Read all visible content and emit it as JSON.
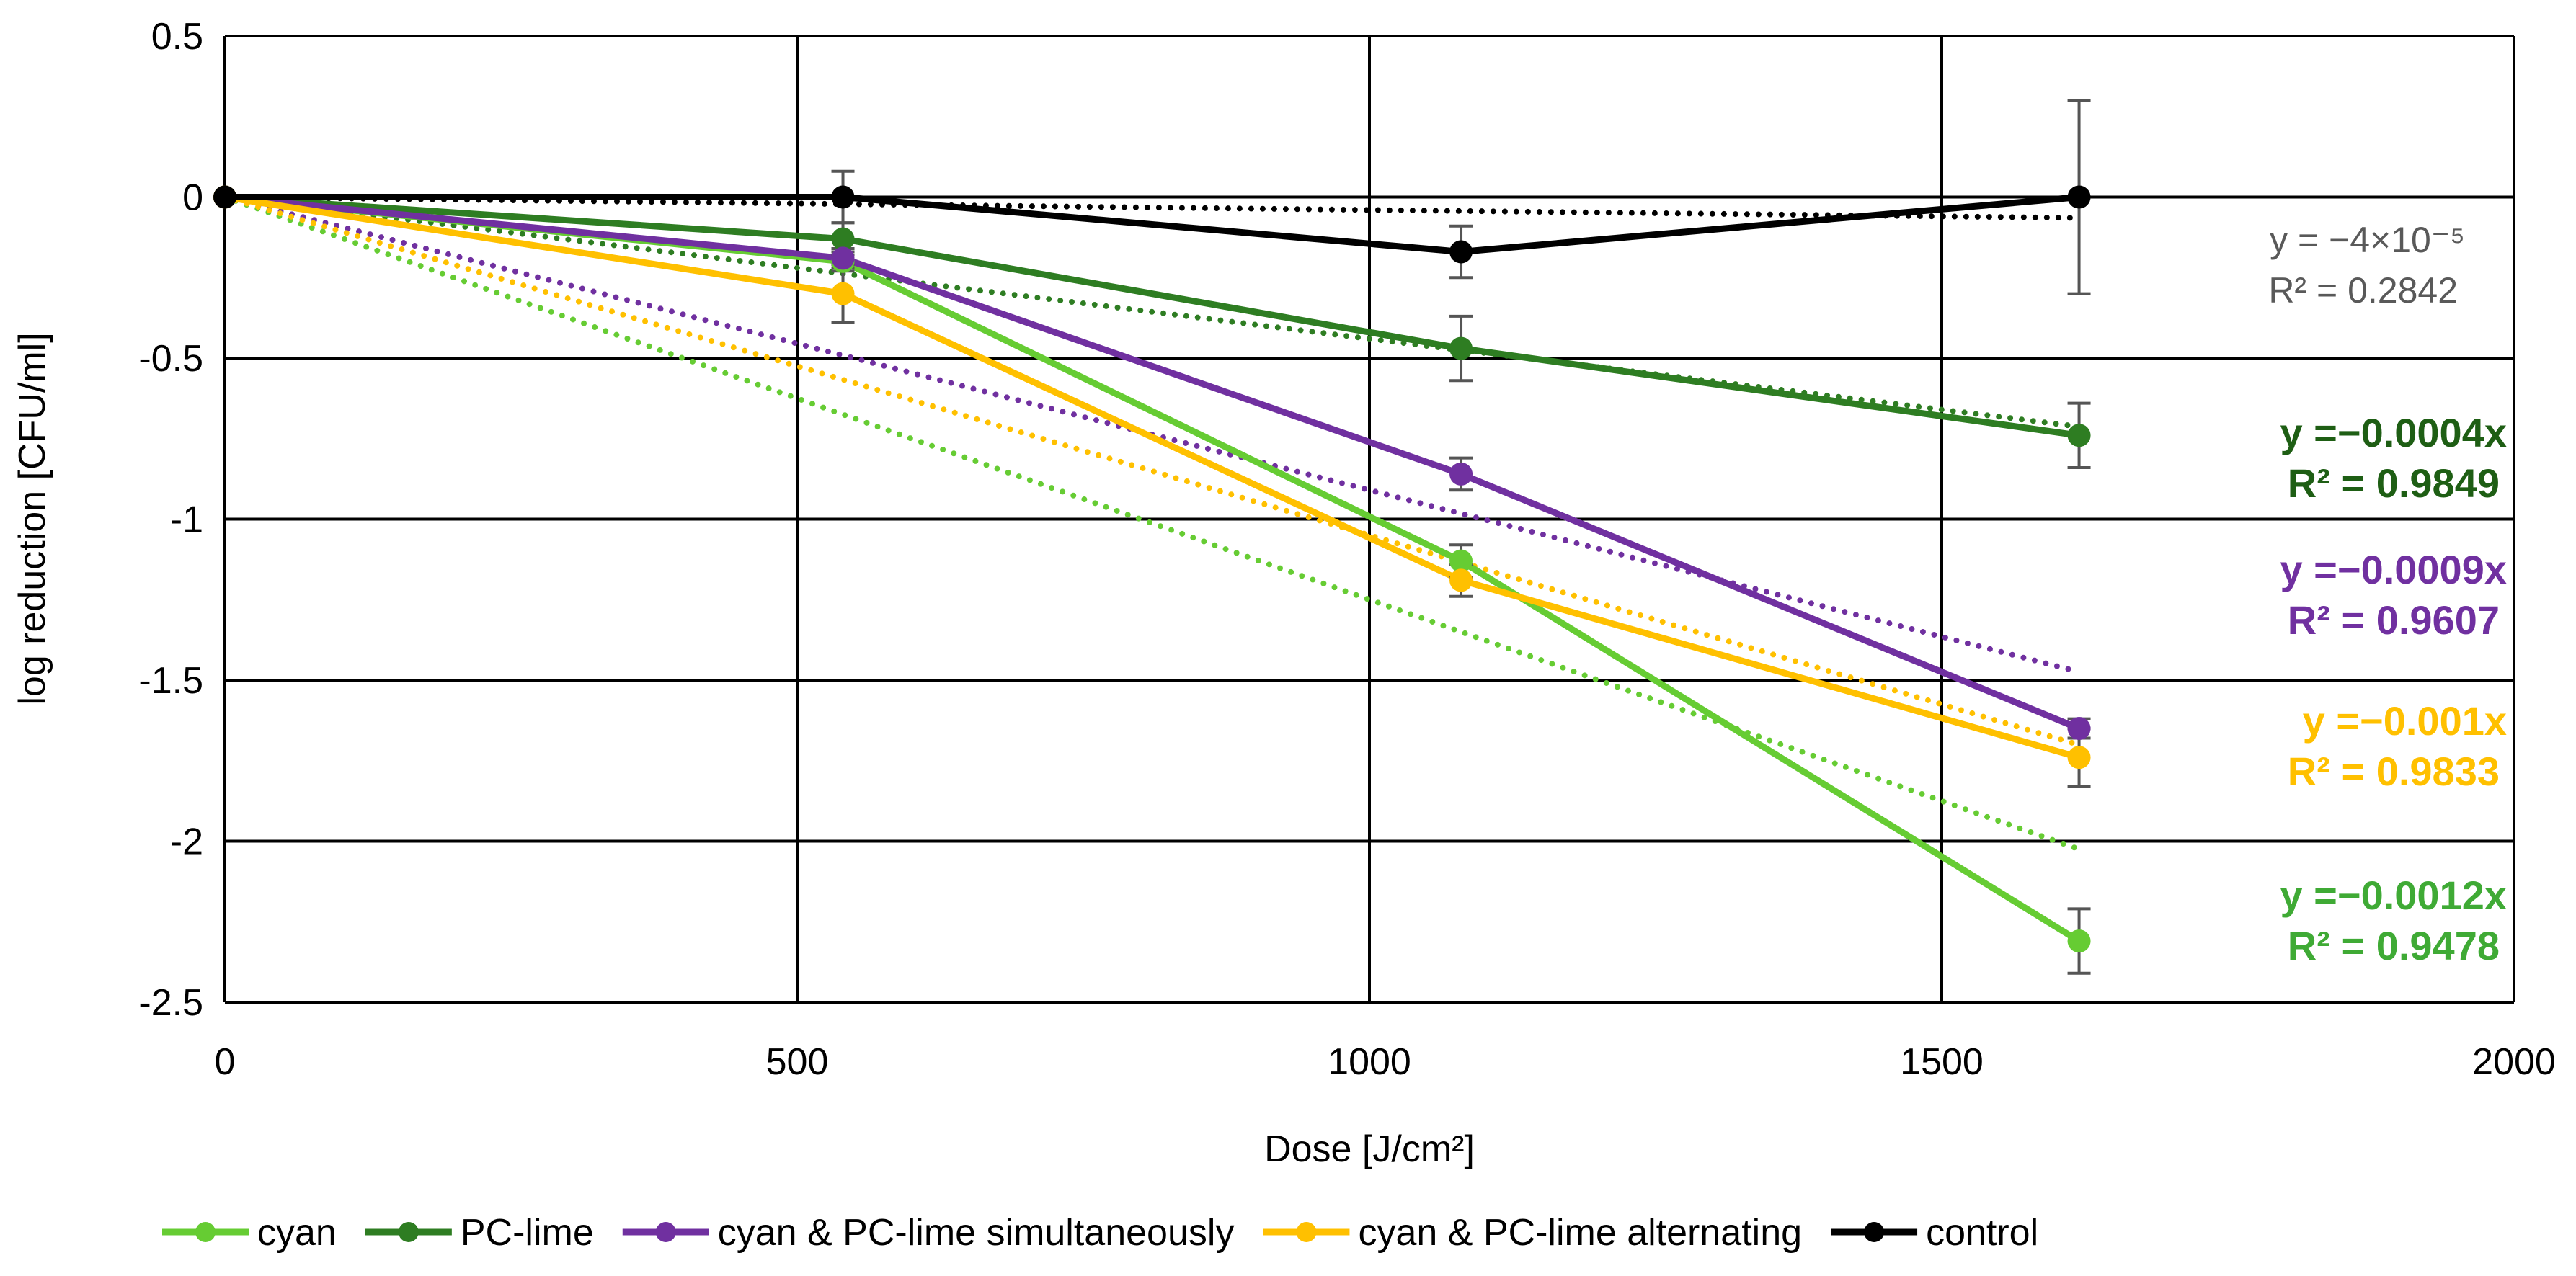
{
  "chart_data": {
    "type": "line",
    "title": "",
    "xlabel": "Dose [J/cm²]",
    "ylabel": "log reduction [CFU/ml]",
    "xlim": [
      0,
      2000
    ],
    "ylim": [
      -2.5,
      0.5
    ],
    "xticks": [
      0,
      500,
      1000,
      1500,
      2000
    ],
    "xtick_labels": [
      "0",
      "500",
      "1000",
      "1500",
      "2000"
    ],
    "yticks": [
      0.5,
      0,
      -0.5,
      -1,
      -1.5,
      -2,
      -2.5
    ],
    "ytick_labels": [
      "0.5",
      "0",
      "-0.5",
      "-1",
      "-1.5",
      "-2",
      "-2.5"
    ],
    "grid": true,
    "legend_position": "bottom",
    "x": [
      0,
      540,
      1080,
      1620
    ],
    "series": [
      {
        "name": "cyan",
        "color": "#66cc33",
        "values": [
          0,
          -0.2,
          -1.13,
          -2.31
        ],
        "errors": [
          0,
          0.03,
          0.05,
          0.1
        ],
        "trend_slope": -0.00125,
        "equation": "y =−0.0012x",
        "r2": "R² = 0.9478",
        "eq_color": "#3faa35",
        "bold": true
      },
      {
        "name": "PC-lime",
        "color": "#2e7d22",
        "values": [
          0,
          -0.13,
          -0.47,
          -0.74
        ],
        "errors": [
          0,
          0.05,
          0.1,
          0.1
        ],
        "trend_slope": -0.00044,
        "equation": "y =−0.0004x",
        "r2": "R² = 0.9849",
        "eq_color": "#1e5e14",
        "bold": true
      },
      {
        "name": "cyan & PC-lime simultaneously",
        "color": "#7030a0",
        "values": [
          0,
          -0.19,
          -0.86,
          -1.65
        ],
        "errors": [
          0,
          0.03,
          0.05,
          0.03
        ],
        "trend_slope": -0.00091,
        "equation": "y =−0.0009x",
        "r2": "R² = 0.9607",
        "eq_color": "#7030a0",
        "bold": true
      },
      {
        "name": "cyan & PC-lime alternating",
        "color": "#ffc000",
        "values": [
          0,
          -0.3,
          -1.19,
          -1.74
        ],
        "errors": [
          0,
          0.09,
          0.05,
          0.09
        ],
        "trend_slope": -0.00105,
        "equation": "y =−0.001x",
        "r2": "R² = 0.9833",
        "eq_color": "#ffc000",
        "bold": true
      },
      {
        "name": "control",
        "color": "#000000",
        "values": [
          0,
          0,
          -0.17,
          0
        ],
        "errors": [
          0,
          0.08,
          0.08,
          0.3
        ],
        "trend_slope": -4e-05,
        "equation": "y = −4×10⁻⁵",
        "r2": "R² = 0.2842",
        "eq_color": "#595959",
        "bold": false
      }
    ]
  }
}
